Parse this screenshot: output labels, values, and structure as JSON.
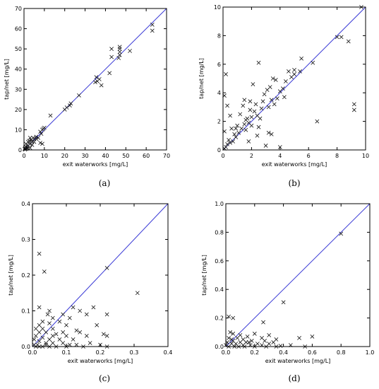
{
  "chart_data": [
    {
      "type": "scatter",
      "caption": "(a)",
      "xlabel": "exit waterworks [mg/L]",
      "ylabel": "tap/net [mg/L]",
      "xlim": [
        0,
        70
      ],
      "ylim": [
        0,
        70
      ],
      "xticks": [
        0,
        10,
        20,
        30,
        40,
        50,
        60,
        70
      ],
      "yticks": [
        0,
        10,
        20,
        30,
        40,
        50,
        60,
        70
      ],
      "tick_labels_x": [
        "0",
        "10",
        "20",
        "30",
        "40",
        "50",
        "60",
        "70"
      ],
      "tick_labels_y": [
        "0",
        "10",
        "20",
        "30",
        "40",
        "50",
        "60",
        "70"
      ],
      "reference_line": "y = x",
      "line_color": "#3b3bd6",
      "marker": "x",
      "points": [
        [
          63,
          62
        ],
        [
          63,
          59
        ],
        [
          52,
          49
        ],
        [
          47,
          51
        ],
        [
          47,
          50
        ],
        [
          47,
          48.5
        ],
        [
          47,
          47
        ],
        [
          46.5,
          45.5
        ],
        [
          43,
          50
        ],
        [
          43,
          46
        ],
        [
          42,
          38
        ],
        [
          38,
          32
        ],
        [
          37,
          35
        ],
        [
          36,
          34
        ],
        [
          35.5,
          36
        ],
        [
          35,
          33.5
        ],
        [
          27,
          27
        ],
        [
          23,
          23
        ],
        [
          22.5,
          22
        ],
        [
          21,
          21
        ],
        [
          20,
          20
        ],
        [
          13,
          17
        ],
        [
          10,
          11
        ],
        [
          9.5,
          10.5
        ],
        [
          9,
          10
        ],
        [
          8,
          9
        ],
        [
          8.5,
          8
        ],
        [
          9,
          3
        ],
        [
          8,
          3.5
        ],
        [
          7,
          6
        ],
        [
          6,
          5.5
        ],
        [
          5,
          5.5
        ],
        [
          4.5,
          6
        ],
        [
          4,
          4
        ],
        [
          3.5,
          5
        ],
        [
          3,
          3
        ],
        [
          2.5,
          3.5
        ],
        [
          2,
          2
        ],
        [
          2,
          1
        ],
        [
          1.5,
          2.5
        ],
        [
          1,
          1.5
        ],
        [
          1,
          0.5
        ],
        [
          0.5,
          1
        ],
        [
          0.5,
          0.2
        ],
        [
          0.3,
          0.5
        ],
        [
          1.5,
          0.8
        ],
        [
          3,
          1
        ],
        [
          2.5,
          4.5
        ],
        [
          4,
          2.5
        ],
        [
          5,
          4
        ],
        [
          3,
          6
        ],
        [
          6,
          6.5
        ],
        [
          2,
          4
        ],
        [
          1,
          3
        ]
      ]
    },
    {
      "type": "scatter",
      "caption": "(b)",
      "xlabel": "exit waterworks [mg/L]",
      "ylabel": "tap/net [mg/L]",
      "xlim": [
        0,
        10
      ],
      "ylim": [
        0,
        10
      ],
      "xticks": [
        0,
        2,
        4,
        6,
        8,
        10
      ],
      "yticks": [
        0,
        2,
        4,
        6,
        8,
        10
      ],
      "tick_labels_x": [
        "0",
        "2",
        "4",
        "6",
        "8",
        "10"
      ],
      "tick_labels_y": [
        "0",
        "2",
        "4",
        "6",
        "8",
        "10"
      ],
      "reference_line": "y = x",
      "line_color": "#3b3bd6",
      "marker": "x",
      "points": [
        [
          9.7,
          10
        ],
        [
          8,
          7.9
        ],
        [
          8.3,
          7.9
        ],
        [
          8.8,
          7.6
        ],
        [
          9.2,
          3.2
        ],
        [
          9.2,
          2.8
        ],
        [
          6.6,
          2
        ],
        [
          6.3,
          6.1
        ],
        [
          5.5,
          6.4
        ],
        [
          5.4,
          5.5
        ],
        [
          5,
          5.6
        ],
        [
          5,
          5.3
        ],
        [
          4.8,
          5.1
        ],
        [
          4.6,
          5.5
        ],
        [
          4.4,
          4.8
        ],
        [
          4.2,
          4.3
        ],
        [
          4,
          4.1
        ],
        [
          4,
          0.2
        ],
        [
          3.8,
          3.6
        ],
        [
          3.6,
          3.2
        ],
        [
          3.4,
          3.5
        ],
        [
          3.5,
          5
        ],
        [
          3.3,
          4.4
        ],
        [
          3.2,
          3
        ],
        [
          3,
          0.3
        ],
        [
          2.9,
          3.9
        ],
        [
          2.7,
          2.9
        ],
        [
          2.5,
          6.1
        ],
        [
          2.5,
          1.6
        ],
        [
          2.4,
          2.4
        ],
        [
          2.3,
          3.2
        ],
        [
          2.2,
          2.7
        ],
        [
          2.1,
          4.6
        ],
        [
          2,
          2.3
        ],
        [
          2,
          1.7
        ],
        [
          1.9,
          3.4
        ],
        [
          1.8,
          1.9
        ],
        [
          1.8,
          0.6
        ],
        [
          1.7,
          2.2
        ],
        [
          1.6,
          1.4
        ],
        [
          1.5,
          3.5
        ],
        [
          1.5,
          1.8
        ],
        [
          1.4,
          3.1
        ],
        [
          1.3,
          1.5
        ],
        [
          1.2,
          2.5
        ],
        [
          1.1,
          1.2
        ],
        [
          1,
          1.7
        ],
        [
          0.9,
          0.9
        ],
        [
          0.8,
          1.1
        ],
        [
          0.7,
          0.6
        ],
        [
          0.6,
          1.5
        ],
        [
          0.5,
          0.5
        ],
        [
          0.4,
          0.7
        ],
        [
          0.3,
          3.1
        ],
        [
          0.3,
          0.4
        ],
        [
          0.2,
          5.3
        ],
        [
          0.2,
          0.2
        ],
        [
          0.1,
          3.8
        ],
        [
          0.1,
          1.3
        ],
        [
          0.1,
          0.1
        ],
        [
          0.5,
          2.4
        ],
        [
          2.8,
          3.4
        ],
        [
          3.1,
          4.2
        ],
        [
          3.7,
          4.9
        ],
        [
          4.3,
          3.7
        ],
        [
          2.6,
          2.2
        ],
        [
          1.9,
          2.8
        ],
        [
          3.2,
          1.2
        ],
        [
          3.4,
          1.1
        ],
        [
          2.4,
          1
        ],
        [
          1.6,
          2.1
        ],
        [
          0.9,
          1.5
        ]
      ]
    },
    {
      "type": "scatter",
      "caption": "(c)",
      "xlabel": "exit waterworks [mg/L]",
      "ylabel": "tap/net [mg/L]",
      "xlim": [
        0,
        0.4
      ],
      "ylim": [
        0,
        0.4
      ],
      "xticks": [
        0,
        0.1,
        0.2,
        0.3,
        0.4
      ],
      "yticks": [
        0,
        0.1,
        0.2,
        0.3,
        0.4
      ],
      "tick_labels_x": [
        "0.0",
        "0.1",
        "0.2",
        "0.3",
        "0.4"
      ],
      "tick_labels_y": [
        "0.0",
        "0.1",
        "0.2",
        "0.3",
        "0.4"
      ],
      "reference_line": "y = x",
      "line_color": "#3b3bd6",
      "marker": "x",
      "points": [
        [
          0.22,
          0.22
        ],
        [
          0.31,
          0.15
        ],
        [
          0.02,
          0.26
        ],
        [
          0.035,
          0.21
        ],
        [
          0.02,
          0.11
        ],
        [
          0.05,
          0.1
        ],
        [
          0.09,
          0.09
        ],
        [
          0.12,
          0.11
        ],
        [
          0.14,
          0.1
        ],
        [
          0.18,
          0.11
        ],
        [
          0.16,
          0.09
        ],
        [
          0.22,
          0.09
        ],
        [
          0.11,
          0.08
        ],
        [
          0.06,
          0.08
        ],
        [
          0.045,
          0.09
        ],
        [
          0.03,
          0.07
        ],
        [
          0.05,
          0.065
        ],
        [
          0.08,
          0.07
        ],
        [
          0.1,
          0.06
        ],
        [
          0.13,
          0.045
        ],
        [
          0.19,
          0.06
        ],
        [
          0.02,
          0.06
        ],
        [
          0.01,
          0.05
        ],
        [
          0.03,
          0.05
        ],
        [
          0.06,
          0.05
        ],
        [
          0.09,
          0.04
        ],
        [
          0.14,
          0.04
        ],
        [
          0.22,
          0.03
        ],
        [
          0.02,
          0.04
        ],
        [
          0.04,
          0.04
        ],
        [
          0.07,
          0.035
        ],
        [
          0.1,
          0.03
        ],
        [
          0.16,
          0.03
        ],
        [
          0.21,
          0.035
        ],
        [
          0.01,
          0.03
        ],
        [
          0.03,
          0.025
        ],
        [
          0.05,
          0.02
        ],
        [
          0.08,
          0.02
        ],
        [
          0.12,
          0.02
        ],
        [
          0.17,
          0.01
        ],
        [
          0.005,
          0.02
        ],
        [
          0.02,
          0.015
        ],
        [
          0.04,
          0.01
        ],
        [
          0.06,
          0.01
        ],
        [
          0.09,
          0.01
        ],
        [
          0.13,
          0.005
        ],
        [
          0.2,
          0.005
        ],
        [
          0.005,
          0.005
        ],
        [
          0.015,
          0.005
        ],
        [
          0.03,
          0.0
        ],
        [
          0.05,
          0.0
        ],
        [
          0.07,
          0.0
        ],
        [
          0.1,
          0.0
        ],
        [
          0.15,
          0.0
        ],
        [
          0.22,
          0.0
        ],
        [
          0.01,
          0.0
        ],
        [
          0.02,
          0.0
        ],
        [
          0.04,
          0.005
        ],
        [
          0.11,
          0.005
        ],
        [
          0.06,
          0.03
        ]
      ]
    },
    {
      "type": "scatter",
      "caption": "(d)",
      "xlabel": "exit waterworks [mg/L]",
      "ylabel": "tap/net [mg/L]",
      "xlim": [
        0,
        1.0
      ],
      "ylim": [
        0,
        1.0
      ],
      "xticks": [
        0,
        0.2,
        0.4,
        0.6,
        0.8,
        1.0
      ],
      "yticks": [
        0,
        0.2,
        0.4,
        0.6,
        0.8,
        1.0
      ],
      "tick_labels_x": [
        "0.0",
        "0.2",
        "0.4",
        "0.6",
        "0.8",
        "1.0"
      ],
      "tick_labels_y": [
        "0.0",
        "0.2",
        "0.4",
        "0.6",
        "0.8",
        "1.0"
      ],
      "reference_line": "y = x",
      "line_color": "#3b3bd6",
      "marker": "x",
      "points": [
        [
          0.8,
          0.79
        ],
        [
          0.4,
          0.31
        ],
        [
          0.02,
          0.21
        ],
        [
          0.05,
          0.2
        ],
        [
          0.6,
          0.07
        ],
        [
          0.51,
          0.06
        ],
        [
          0.35,
          0.05
        ],
        [
          0.3,
          0.08
        ],
        [
          0.25,
          0.06
        ],
        [
          0.2,
          0.09
        ],
        [
          0.15,
          0.07
        ],
        [
          0.1,
          0.08
        ],
        [
          0.05,
          0.09
        ],
        [
          0.03,
          0.1
        ],
        [
          0.08,
          0.06
        ],
        [
          0.12,
          0.05
        ],
        [
          0.18,
          0.04
        ],
        [
          0.27,
          0.04
        ],
        [
          0.02,
          0.06
        ],
        [
          0.05,
          0.04
        ],
        [
          0.1,
          0.03
        ],
        [
          0.14,
          0.03
        ],
        [
          0.22,
          0.02
        ],
        [
          0.3,
          0.02
        ],
        [
          0.45,
          0.01
        ],
        [
          0.01,
          0.03
        ],
        [
          0.04,
          0.02
        ],
        [
          0.07,
          0.02
        ],
        [
          0.12,
          0.01
        ],
        [
          0.17,
          0.01
        ],
        [
          0.25,
          0.01
        ],
        [
          0.35,
          0.0
        ],
        [
          0.55,
          0.0
        ],
        [
          0.0,
          0.01
        ],
        [
          0.02,
          0.0
        ],
        [
          0.06,
          0.0
        ],
        [
          0.09,
          0.0
        ],
        [
          0.13,
          0.0
        ],
        [
          0.2,
          0.0
        ],
        [
          0.28,
          0.0
        ],
        [
          0.38,
          0.005
        ],
        [
          0.26,
          0.17
        ],
        [
          0.16,
          0.03
        ],
        [
          0.04,
          0.05
        ],
        [
          0.33,
          0.03
        ]
      ]
    }
  ]
}
